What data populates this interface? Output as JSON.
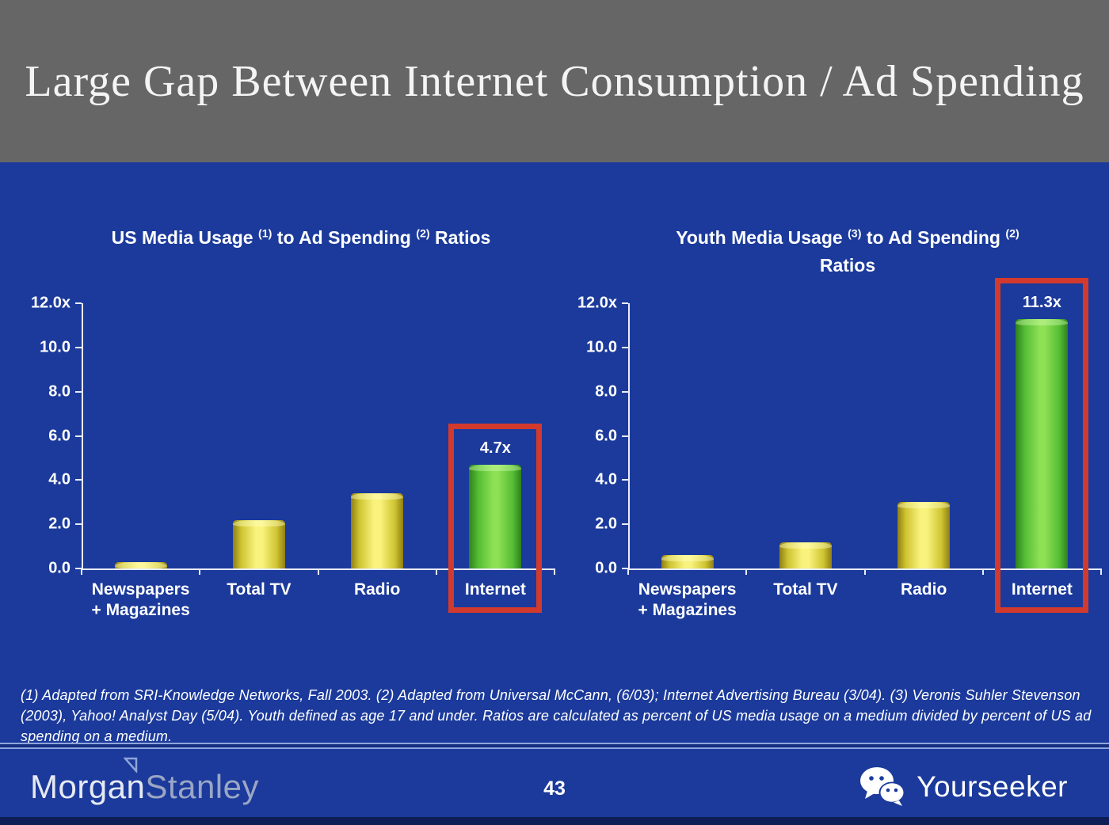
{
  "header": {
    "title": "Large Gap Between Internet Consumption / Ad Spending"
  },
  "chart_data": [
    {
      "type": "bar",
      "title": "US Media Usage (1) to Ad Spending (2) Ratios",
      "title_lines": [
        [
          {
            "t": "US Media Usage "
          },
          {
            "s": "(1)"
          },
          {
            "t": " to Ad Spending "
          },
          {
            "s": "(2)"
          },
          {
            "t": " Ratios"
          }
        ]
      ],
      "categories": [
        "Newspapers\n+ Magazines",
        "Total TV",
        "Radio",
        "Internet"
      ],
      "values": [
        0.3,
        2.2,
        3.4,
        4.7
      ],
      "data_labels": [
        null,
        null,
        null,
        "4.7x"
      ],
      "bar_colors": [
        "yellow",
        "yellow",
        "yellow",
        "green"
      ],
      "highlight_index": 3,
      "ytick_labels": [
        "12.0x",
        "10.0",
        "8.0",
        "6.0",
        "4.0",
        "2.0",
        "0.0"
      ],
      "ytick_values": [
        12,
        10,
        8,
        6,
        4,
        2,
        0
      ],
      "ylim": [
        0,
        12
      ],
      "xlabel": "",
      "ylabel": "",
      "grid": false,
      "legend": null
    },
    {
      "type": "bar",
      "title": "Youth Media Usage (3) to Ad Spending (2) Ratios",
      "title_lines": [
        [
          {
            "t": "Youth Media Usage "
          },
          {
            "s": "(3)"
          },
          {
            "t": " to Ad Spending "
          },
          {
            "s": "(2)"
          }
        ],
        [
          {
            "t": "Ratios"
          }
        ]
      ],
      "categories": [
        "Newspapers\n+ Magazines",
        "Total TV",
        "Radio",
        "Internet"
      ],
      "values": [
        0.6,
        1.2,
        3.0,
        11.3
      ],
      "data_labels": [
        null,
        null,
        null,
        "11.3x"
      ],
      "bar_colors": [
        "yellow",
        "yellow",
        "yellow",
        "green"
      ],
      "highlight_index": 3,
      "ytick_labels": [
        "12.0x",
        "10.0",
        "8.0",
        "6.0",
        "4.0",
        "2.0",
        "0.0"
      ],
      "ytick_values": [
        12,
        10,
        8,
        6,
        4,
        2,
        0
      ],
      "ylim": [
        0,
        12
      ],
      "xlabel": "",
      "ylabel": "",
      "grid": false,
      "legend": null
    }
  ],
  "footnote": "(1) Adapted from SRI-Knowledge Networks, Fall 2003.  (2) Adapted from Universal McCann, (6/03); Internet Advertising Bureau (3/04). (3) Veronis Suhler Stevenson (2003), Yahoo! Analyst Day (5/04).  Youth defined as age 17 and under.  Ratios are calculated as percent of US media usage on a medium divided by percent of US ad spending on a medium.",
  "footer": {
    "page_number": "43",
    "brand_left_part1": "Morgan",
    "brand_left_part2": "Stanley",
    "brand_right": "Yourseeker"
  },
  "colors": {
    "header_bg": "#666667",
    "body_bg": "#1b3a9b",
    "bar_yellow": "#f9f37e",
    "bar_green": "#8ee055",
    "highlight_red": "#d23a2e",
    "axis": "#e9ecf8",
    "bottom_strip": "#0d1d55"
  }
}
